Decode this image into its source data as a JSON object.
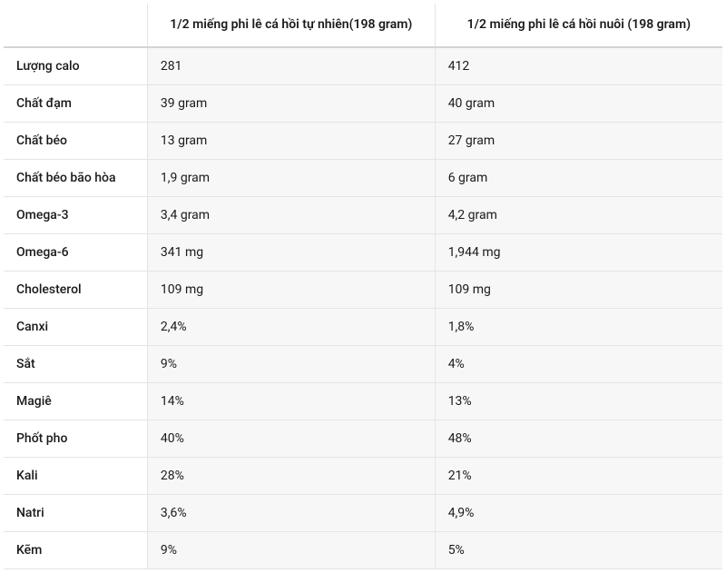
{
  "table": {
    "type": "table",
    "background_color": "#ffffff",
    "value_cell_bg": "#f7f7f7",
    "border_color": "#e4e4e4",
    "header_border_color": "#d4d4d4",
    "text_color": "#1a1a1a",
    "font_size_pt": 10.5,
    "header_font_weight": 600,
    "label_font_weight": 500,
    "value_font_weight": 400,
    "col_widths_pct": [
      20,
      40,
      40
    ],
    "columns": [
      "",
      "1/2 miếng phi lê cá hồi tự nhiên(198 gram)",
      "1/2 miếng phi lê cá hồi nuôi (198 gram)"
    ],
    "rows": [
      {
        "label": "Lượng calo",
        "v1": "281",
        "v2": "412"
      },
      {
        "label": "Chất đạm",
        "v1": "39 gram",
        "v2": "40 gram"
      },
      {
        "label": "Chất béo",
        "v1": "13 gram",
        "v2": "27 gram"
      },
      {
        "label": "Chất béo bão hòa",
        "v1": "1,9 gram",
        "v2": "6 gram"
      },
      {
        "label": "Omega-3",
        "v1": "3,4 gram",
        "v2": "4,2 gram"
      },
      {
        "label": "Omega-6",
        "v1": "341 mg",
        "v2": "1,944 mg"
      },
      {
        "label": "Cholesterol",
        "v1": "109 mg",
        "v2": "109 mg"
      },
      {
        "label": "Canxi",
        "v1": "2,4%",
        "v2": "1,8%"
      },
      {
        "label": "Sắt",
        "v1": "9%",
        "v2": "4%"
      },
      {
        "label": "Magiê",
        "v1": "14%",
        "v2": "13%"
      },
      {
        "label": "Phốt pho",
        "v1": "40%",
        "v2": "48%"
      },
      {
        "label": "Kali",
        "v1": "28%",
        "v2": "21%"
      },
      {
        "label": "Natri",
        "v1": "3,6%",
        "v2": "4,9%"
      },
      {
        "label": "Kẽm",
        "v1": "9%",
        "v2": "5%"
      }
    ]
  }
}
